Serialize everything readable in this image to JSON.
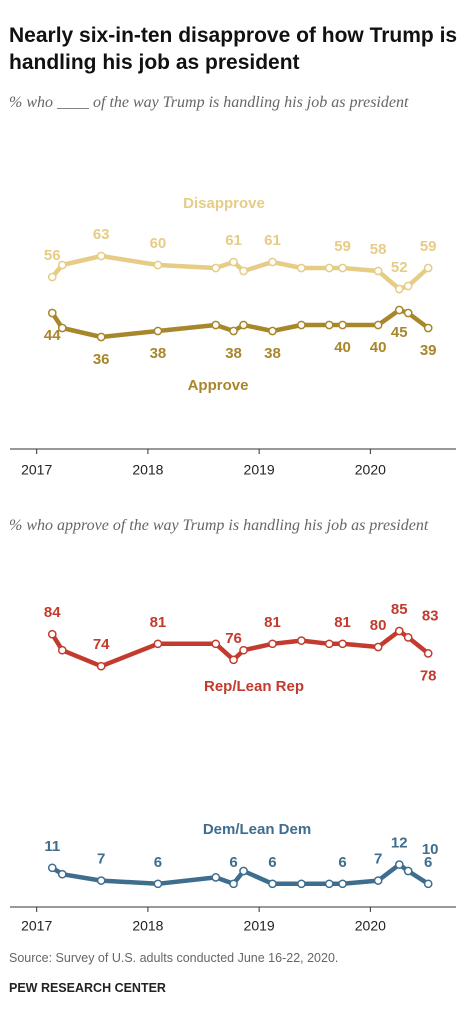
{
  "chart_data": [
    {
      "type": "line",
      "title": "Nearly six-in-ten disapprove of how Trump is handling his job as president",
      "subtitle": "% who ____ of the way Trump is handling his job as president",
      "x": [
        2017.14,
        2017.23,
        2017.58,
        2018.09,
        2018.61,
        2018.77,
        2018.86,
        2019.12,
        2019.38,
        2019.63,
        2019.75,
        2020.07,
        2020.26,
        2020.34,
        2020.52
      ],
      "xlim": [
        2016.76,
        2020.77
      ],
      "xticks": [
        2017,
        2018,
        2019,
        2020
      ],
      "ylim": [
        0,
        100
      ],
      "series": [
        {
          "name": "Disapprove",
          "color": "#e6cc85",
          "values": [
            56,
            60,
            63,
            60,
            59,
            61,
            58,
            61,
            59,
            59,
            59,
            58,
            52,
            53,
            59
          ],
          "value_labels": [
            "56",
            null,
            "63",
            "60",
            null,
            "61",
            null,
            "61",
            null,
            null,
            "59",
            "58",
            "52",
            null,
            "59"
          ]
        },
        {
          "name": "Approve",
          "color": "#a8862a",
          "values": [
            44,
            39,
            36,
            38,
            40,
            38,
            40,
            38,
            40,
            40,
            40,
            40,
            45,
            44,
            39
          ],
          "value_labels": [
            "44",
            null,
            "36",
            "38",
            null,
            "38",
            null,
            "38",
            null,
            null,
            "40",
            "40",
            "45",
            null,
            "39"
          ]
        }
      ]
    },
    {
      "type": "line",
      "subtitle": "% who approve of the way Trump is handling his job as president",
      "x": [
        2017.14,
        2017.23,
        2017.58,
        2018.09,
        2018.61,
        2018.77,
        2018.86,
        2019.12,
        2019.38,
        2019.63,
        2019.75,
        2020.07,
        2020.26,
        2020.34,
        2020.52
      ],
      "xlim": [
        2016.76,
        2020.77
      ],
      "xticks": [
        2017,
        2018,
        2019,
        2020
      ],
      "ylim": [
        0,
        100
      ],
      "series": [
        {
          "name": "Rep/Lean Rep",
          "color": "#c33b2f",
          "values": [
            84,
            79,
            74,
            81,
            81,
            76,
            79,
            81,
            82,
            81,
            81,
            80,
            85,
            83,
            78
          ],
          "value_labels": [
            "84",
            null,
            "74",
            "81",
            null,
            "76",
            null,
            "81",
            null,
            null,
            "81",
            "80",
            "85",
            "83",
            "78"
          ]
        },
        {
          "name": "Dem/Lean Dem",
          "color": "#3e6d8e",
          "values": [
            11,
            9,
            7,
            6,
            8,
            6,
            10,
            6,
            6,
            6,
            6,
            7,
            12,
            10,
            6
          ],
          "value_labels": [
            "11",
            null,
            "7",
            "6",
            null,
            "6",
            null,
            "6",
            null,
            null,
            "6",
            "7",
            "12",
            "10",
            "6"
          ]
        }
      ]
    }
  ],
  "source": "Source: Survey of U.S. adults conducted June 16-22, 2020.",
  "credit": "PEW RESEARCH CENTER"
}
